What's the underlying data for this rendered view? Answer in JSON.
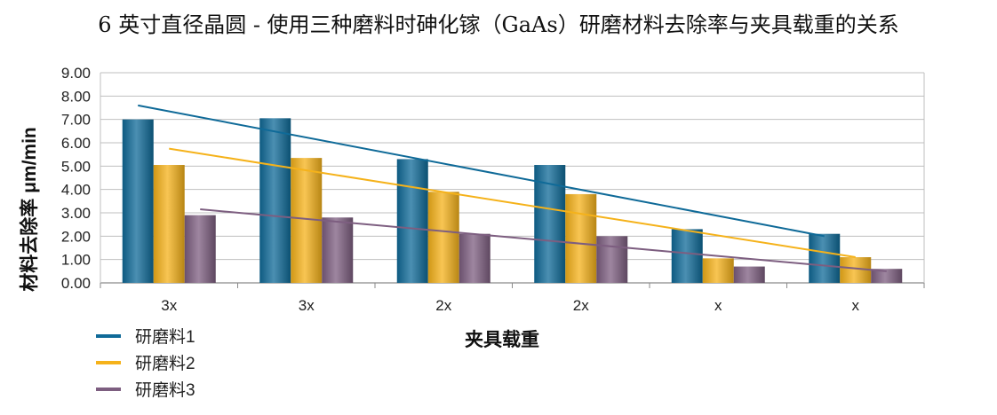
{
  "title": "6 英寸直径晶圆 - 使用三种磨料时砷化镓（GaAs）研磨材料去除率与夹具载重的关系",
  "chart_data": {
    "type": "bar",
    "title": "6 英寸直径晶圆 - 使用三种磨料时砷化镓（GaAs）研磨材料去除率与夹具载重的关系",
    "xlabel": "夹具载重",
    "ylabel": "材料去除率 μm/min",
    "ylim": [
      0,
      9
    ],
    "ytick_step": 1,
    "ytick_format_decimals": 2,
    "grid": true,
    "legend_position": "bottom-left",
    "categories": [
      "3x",
      "3x",
      "2x",
      "2x",
      "x",
      "x"
    ],
    "series": [
      {
        "name": "研磨料1",
        "color": "#0f6a98",
        "values": [
          7.0,
          7.05,
          5.3,
          5.05,
          2.3,
          2.1
        ],
        "trend": [
          7.6,
          2.0
        ]
      },
      {
        "name": "研磨料2",
        "color": "#f5b21a",
        "values": [
          5.05,
          5.35,
          3.9,
          3.8,
          1.05,
          1.1
        ],
        "trend": [
          5.75,
          1.1
        ]
      },
      {
        "name": "研磨料3",
        "color": "#7d5e80",
        "values": [
          2.9,
          2.8,
          2.1,
          2.0,
          0.7,
          0.6
        ],
        "trend": [
          3.15,
          0.5
        ]
      }
    ]
  }
}
